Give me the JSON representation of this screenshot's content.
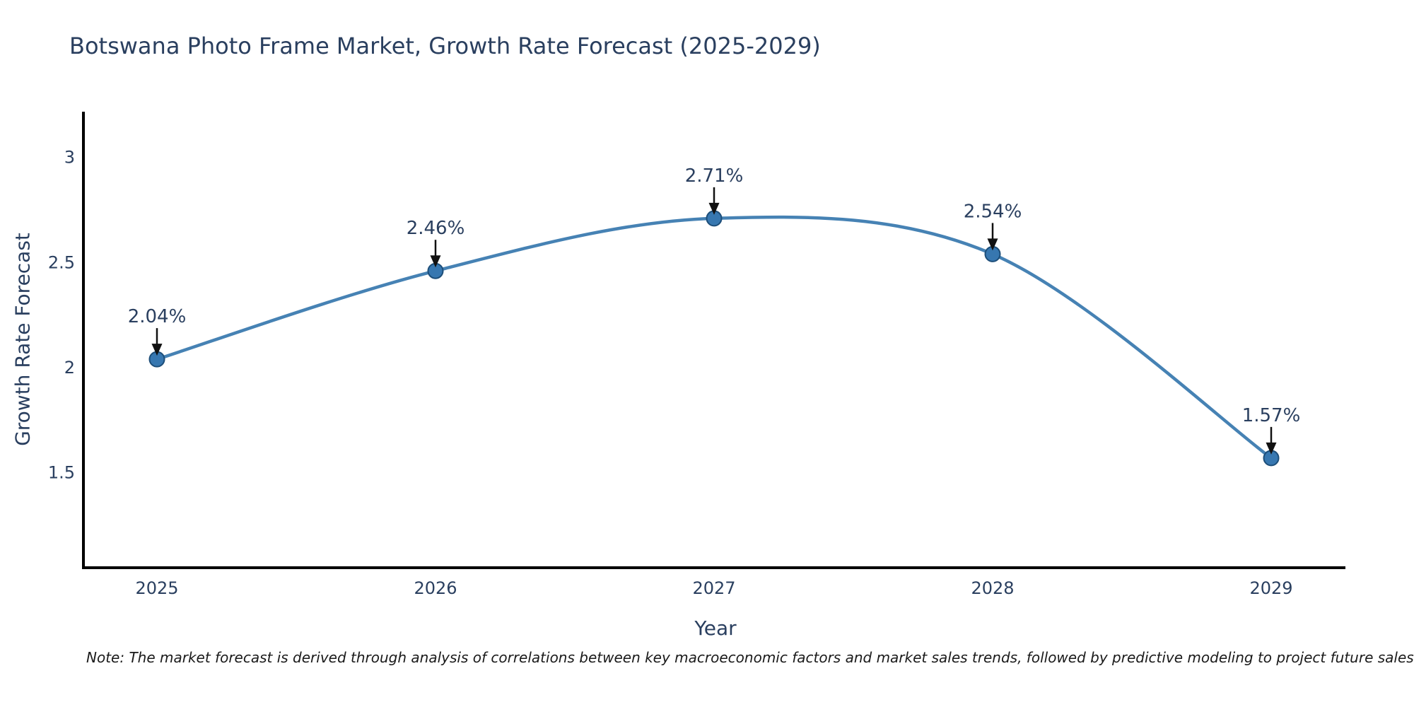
{
  "title": "Botswana Photo Frame Market, Growth Rate Forecast (2025-2029)",
  "note": "Note: The market forecast is derived through analysis of correlations between key macroeconomic factors and market sales trends, followed by predictive modeling to project future sales",
  "chart_data": {
    "type": "line",
    "line_shape": "spline",
    "title": "Botswana Photo Frame Market, Growth Rate Forecast (2025-2029)",
    "xlabel": "Year",
    "ylabel": "Growth Rate Forecast",
    "x": [
      2025,
      2026,
      2027,
      2028,
      2029
    ],
    "x_tick_labels": [
      "2025",
      "2026",
      "2027",
      "2028",
      "2029"
    ],
    "series": [
      {
        "name": "Growth Rate Forecast",
        "values": [
          2.04,
          2.46,
          2.71,
          2.54,
          1.57
        ],
        "point_labels": [
          "2.04%",
          "2.46%",
          "2.71%",
          "2.54%",
          "1.57%"
        ]
      }
    ],
    "y_ticks": [
      1.5,
      2,
      2.5,
      3
    ],
    "y_tick_labels": [
      "1.5",
      "2",
      "2.5",
      "3"
    ],
    "ylim": [
      1.05,
      3.22
    ],
    "grid": false,
    "legend": false,
    "annotations_have_arrows": true
  },
  "colors": {
    "text": "#2a3f5f",
    "line": "#4682b4",
    "marker_fill": "#3777b0",
    "marker_edge": "#1d4e79",
    "axis_line": "#000000",
    "arrow": "#111111",
    "note_text": "#1a1a1a"
  }
}
